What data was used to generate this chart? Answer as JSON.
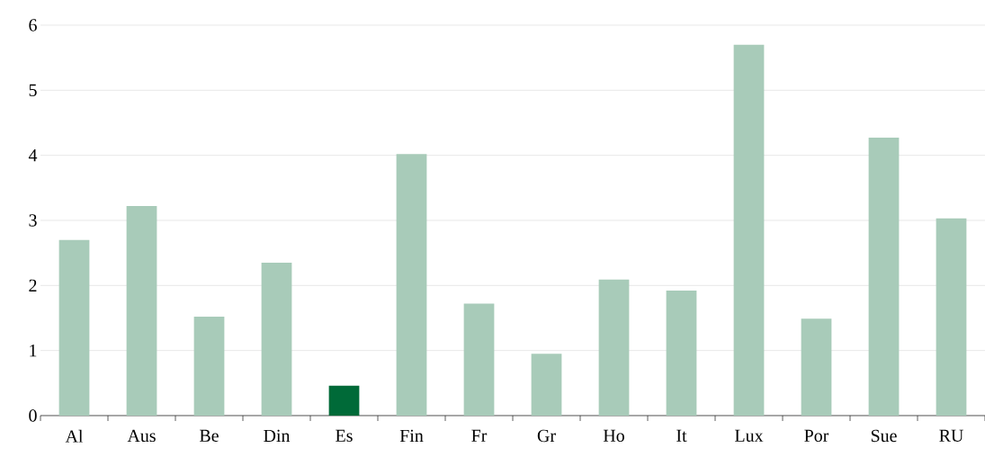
{
  "chart_data": {
    "type": "bar",
    "categories": [
      "Al",
      "Aus",
      "Be",
      "Din",
      "Es",
      "Fin",
      "Fr",
      "Gr",
      "Ho",
      "It",
      "Lux",
      "Por",
      "Sue",
      "RU"
    ],
    "values": [
      2.7,
      3.22,
      1.52,
      2.35,
      0.46,
      4.02,
      1.72,
      0.95,
      2.09,
      1.92,
      5.7,
      1.49,
      4.27,
      3.03
    ],
    "colors": [
      "#a8cbb9",
      "#a8cbb9",
      "#a8cbb9",
      "#a8cbb9",
      "#006a38",
      "#a8cbb9",
      "#a8cbb9",
      "#a8cbb9",
      "#a8cbb9",
      "#a8cbb9",
      "#a8cbb9",
      "#a8cbb9",
      "#a8cbb9",
      "#a8cbb9"
    ],
    "ylim": [
      0,
      6
    ],
    "yticks": [
      0,
      1,
      2,
      3,
      4,
      5,
      6
    ],
    "grid": "y"
  }
}
